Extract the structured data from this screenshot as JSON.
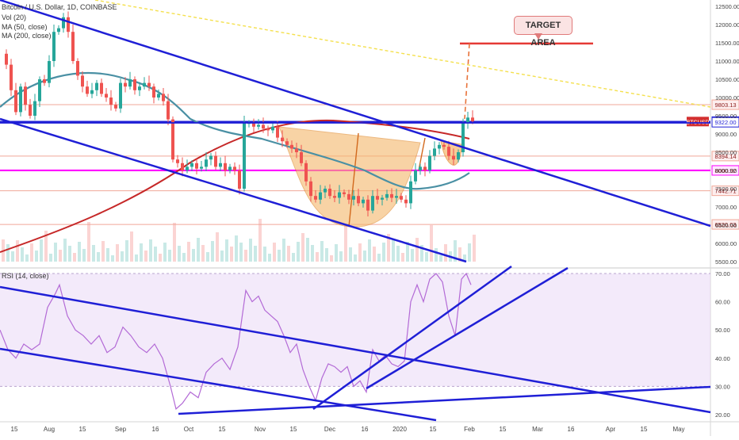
{
  "header": {
    "symbol": "Bitcoin / U.S. Dollar, 1D, COINBASE",
    "vol": "Vol (20)",
    "ma50": "MA (50, close)",
    "ma200": "MA (200, close)",
    "rsi": "RSI (14, close)"
  },
  "annotation": {
    "target_label": "TARGET AREA"
  },
  "colors": {
    "up": "#26a69a",
    "down": "#ef5350",
    "trend": "#1f1fd6",
    "ma50": "#4a90a4",
    "ma200": "#c62828",
    "rsi_line": "#b36ad6",
    "rsi_band": "#e9d8f5",
    "magenta": "#ff00ff",
    "target": "#e53935",
    "cup": "#f5b66b"
  },
  "chart_data": [
    {
      "type": "candlestick",
      "title": "Bitcoin / U.S. Dollar, 1D, COINBASE",
      "x_tick_labels": [
        "15",
        "Aug",
        "15",
        "Sep",
        "16",
        "Oct",
        "15",
        "Nov",
        "15",
        "Dec",
        "16",
        "2020",
        "15",
        "Feb",
        "15",
        "Mar",
        "16",
        "Apr",
        "15",
        "May"
      ],
      "y_tick_labels": [
        "12500.00",
        "12000.00",
        "11500.00",
        "11000.00",
        "10500.00",
        "10000.00",
        "9500.00",
        "9000.00",
        "8500.00",
        "8000.00",
        "7500.00",
        "7000.00",
        "6500.00",
        "6000.00",
        "5500.00"
      ],
      "ylim": [
        5500,
        12500
      ],
      "price_close_path": [
        [
          0,
          11200
        ],
        [
          6,
          10900
        ],
        [
          12,
          10200
        ],
        [
          18,
          9600
        ],
        [
          24,
          10300
        ],
        [
          30,
          9800
        ],
        [
          36,
          9500
        ],
        [
          42,
          9900
        ],
        [
          48,
          10500
        ],
        [
          54,
          10400
        ],
        [
          60,
          11000
        ],
        [
          66,
          11800
        ],
        [
          72,
          11900
        ],
        [
          78,
          12200
        ],
        [
          84,
          11800
        ],
        [
          90,
          11000
        ],
        [
          96,
          10600
        ],
        [
          102,
          10300
        ],
        [
          108,
          10100
        ],
        [
          114,
          10200
        ],
        [
          120,
          10400
        ],
        [
          126,
          10100
        ],
        [
          132,
          10000
        ],
        [
          138,
          9800
        ],
        [
          144,
          9700
        ],
        [
          150,
          10400
        ],
        [
          156,
          10300
        ],
        [
          162,
          10500
        ],
        [
          168,
          10200
        ],
        [
          174,
          10300
        ],
        [
          180,
          10400
        ],
        [
          186,
          10300
        ],
        [
          192,
          10000
        ],
        [
          198,
          10100
        ],
        [
          204,
          9900
        ],
        [
          210,
          9400
        ],
        [
          216,
          8300
        ],
        [
          222,
          8200
        ],
        [
          228,
          8000
        ],
        [
          234,
          8100
        ],
        [
          240,
          8200
        ],
        [
          246,
          8050
        ],
        [
          252,
          8100
        ],
        [
          258,
          8300
        ],
        [
          264,
          8400
        ],
        [
          270,
          8100
        ],
        [
          276,
          8200
        ],
        [
          282,
          8000
        ],
        [
          288,
          8100
        ],
        [
          294,
          8000
        ],
        [
          300,
          7500
        ],
        [
          306,
          9300
        ],
        [
          312,
          9300
        ],
        [
          318,
          9200
        ],
        [
          324,
          9250
        ],
        [
          330,
          9150
        ],
        [
          336,
          9100
        ],
        [
          342,
          9200
        ],
        [
          348,
          8900
        ],
        [
          354,
          8800
        ],
        [
          360,
          8700
        ],
        [
          366,
          8600
        ],
        [
          372,
          8500
        ],
        [
          378,
          8200
        ],
        [
          384,
          7700
        ],
        [
          390,
          7300
        ],
        [
          396,
          7200
        ],
        [
          402,
          7400
        ],
        [
          408,
          7500
        ],
        [
          414,
          7300
        ],
        [
          420,
          7250
        ],
        [
          426,
          7400
        ],
        [
          432,
          7350
        ],
        [
          438,
          7200
        ],
        [
          444,
          7300
        ],
        [
          450,
          7100
        ],
        [
          456,
          7200
        ],
        [
          462,
          6900
        ],
        [
          468,
          7300
        ],
        [
          474,
          7200
        ],
        [
          480,
          7250
        ],
        [
          486,
          7350
        ],
        [
          492,
          7250
        ],
        [
          498,
          7300
        ],
        [
          504,
          7200
        ],
        [
          510,
          7100
        ],
        [
          516,
          7700
        ],
        [
          522,
          8000
        ],
        [
          528,
          8100
        ],
        [
          534,
          8000
        ],
        [
          540,
          8400
        ],
        [
          546,
          8600
        ],
        [
          552,
          8700
        ],
        [
          558,
          8650
        ],
        [
          564,
          8400
        ],
        [
          570,
          8300
        ],
        [
          576,
          8500
        ],
        [
          582,
          9300
        ],
        [
          588,
          9450
        ],
        [
          594,
          9350
        ]
      ],
      "horizontal_levels": [
        {
          "label": "9803.13",
          "value": 9803.13,
          "color": "#f0a899"
        },
        {
          "label": "9340.89",
          "value": 9340.89,
          "color": "#1f1fd6"
        },
        {
          "label": "9322.00",
          "value": 9322.0,
          "color": "#1f1fd6"
        },
        {
          "label": "8394.14",
          "value": 8394.14,
          "color": "#f0a899"
        },
        {
          "label": "8000.92",
          "value": 8000.92,
          "color": "#ff00ff"
        },
        {
          "label": "7442.71",
          "value": 7442.71,
          "color": "#f0a899"
        },
        {
          "label": "6520.03",
          "value": 6520.03,
          "color": "#f0a899"
        }
      ],
      "target_price": 11480,
      "current_tag": "BTCUSD"
    },
    {
      "type": "line",
      "title": "RSI (14, close)",
      "y_tick_labels": [
        "70.00",
        "60.00",
        "50.00",
        "40.00",
        "30.00",
        "20.00"
      ],
      "ylim": [
        20,
        70
      ],
      "band": [
        30,
        70
      ],
      "rsi_path": [
        [
          0,
          50
        ],
        [
          10,
          43
        ],
        [
          20,
          40
        ],
        [
          30,
          45
        ],
        [
          40,
          43
        ],
        [
          50,
          45
        ],
        [
          60,
          58
        ],
        [
          70,
          63
        ],
        [
          75,
          66
        ],
        [
          85,
          55
        ],
        [
          95,
          50
        ],
        [
          105,
          48
        ],
        [
          115,
          45
        ],
        [
          125,
          48
        ],
        [
          135,
          42
        ],
        [
          145,
          44
        ],
        [
          155,
          51
        ],
        [
          165,
          48
        ],
        [
          175,
          44
        ],
        [
          185,
          42
        ],
        [
          195,
          45
        ],
        [
          205,
          40
        ],
        [
          215,
          30
        ],
        [
          222,
          22
        ],
        [
          230,
          24
        ],
        [
          240,
          28
        ],
        [
          250,
          26
        ],
        [
          260,
          35
        ],
        [
          270,
          38
        ],
        [
          280,
          40
        ],
        [
          290,
          36
        ],
        [
          300,
          44
        ],
        [
          310,
          64
        ],
        [
          318,
          60
        ],
        [
          326,
          62
        ],
        [
          334,
          57
        ],
        [
          342,
          55
        ],
        [
          350,
          53
        ],
        [
          358,
          48
        ],
        [
          366,
          42
        ],
        [
          374,
          45
        ],
        [
          382,
          36
        ],
        [
          390,
          30
        ],
        [
          398,
          25
        ],
        [
          406,
          33
        ],
        [
          414,
          38
        ],
        [
          422,
          37
        ],
        [
          430,
          35
        ],
        [
          438,
          37
        ],
        [
          446,
          30
        ],
        [
          454,
          32
        ],
        [
          462,
          28
        ],
        [
          470,
          43
        ],
        [
          478,
          39
        ],
        [
          486,
          41
        ],
        [
          494,
          38
        ],
        [
          502,
          37
        ],
        [
          510,
          39
        ],
        [
          518,
          60
        ],
        [
          526,
          66
        ],
        [
          534,
          60
        ],
        [
          542,
          68
        ],
        [
          550,
          70
        ],
        [
          558,
          67
        ],
        [
          566,
          55
        ],
        [
          574,
          48
        ],
        [
          582,
          68
        ],
        [
          588,
          70
        ],
        [
          594,
          66
        ]
      ],
      "x_tick_labels": [
        "15",
        "Aug",
        "15",
        "Sep",
        "16",
        "Oct",
        "15",
        "Nov",
        "15",
        "Dec",
        "16",
        "2020",
        "15",
        "Feb",
        "15",
        "Mar",
        "16",
        "Apr",
        "15",
        "May"
      ]
    }
  ]
}
